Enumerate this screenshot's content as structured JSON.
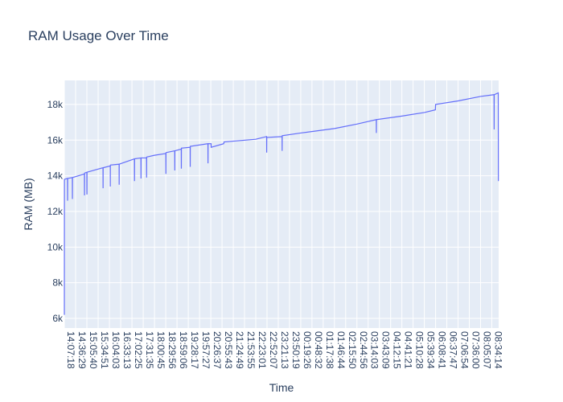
{
  "chart_data": {
    "type": "line",
    "title": "RAM Usage Over Time",
    "x_label": "Time",
    "y_label": "RAM (MB)",
    "color": "#636efa",
    "grid": true,
    "x": [
      "14:07:18",
      "14:07:30",
      "14:15:30",
      "14:15:42",
      "14:15:54",
      "14:28:00",
      "14:28:12",
      "14:28:24",
      "14:59:18",
      "14:59:30",
      "14:59:42",
      "15:05:36",
      "15:05:48",
      "15:06:00",
      "15:47:24",
      "15:47:36",
      "15:47:48",
      "16:06:06",
      "16:06:18",
      "16:06:30",
      "16:29:06",
      "16:29:18",
      "16:29:30",
      "17:08:48",
      "17:09:00",
      "17:09:12",
      "17:25:36",
      "17:25:48",
      "17:26:00",
      "17:40:06",
      "17:40:18",
      "17:40:30",
      "18:00:45",
      "18:30:06",
      "18:30:18",
      "18:30:30",
      "18:53:06",
      "18:53:18",
      "18:53:30",
      "19:10:06",
      "19:10:18",
      "19:10:30",
      "19:33:06",
      "19:33:18",
      "19:33:30",
      "20:19:06",
      "20:19:18",
      "20:19:30",
      "20:27:18",
      "20:27:30",
      "21:00:00",
      "21:01:00",
      "22:23:01",
      "22:51:06",
      "22:51:18",
      "22:51:30",
      "23:31:06",
      "23:31:18",
      "23:31:30",
      "00:19:26",
      "01:46:44",
      "02:44:56",
      "03:35:06",
      "03:35:18",
      "03:35:30",
      "04:41:21",
      "05:39:34",
      "06:08:06",
      "06:08:41",
      "07:06:54",
      "08:05:07",
      "08:40:06",
      "08:40:18",
      "08:40:30",
      "08:51:00",
      "08:51:18"
    ],
    "values": [
      6200,
      13800,
      13850,
      12600,
      13850,
      13900,
      12700,
      13900,
      14100,
      12900,
      14150,
      14200,
      12950,
      14200,
      14450,
      13300,
      14450,
      14550,
      13400,
      14600,
      14650,
      13500,
      14650,
      14950,
      13700,
      14950,
      15000,
      13850,
      15000,
      15000,
      13900,
      15050,
      15150,
      15250,
      14100,
      15300,
      15400,
      14300,
      15400,
      15500,
      14400,
      15550,
      15600,
      14500,
      15650,
      15800,
      14700,
      15800,
      15800,
      15600,
      15800,
      15900,
      16050,
      16200,
      15300,
      16150,
      16200,
      15400,
      16250,
      16400,
      16650,
      16900,
      17150,
      16400,
      17150,
      17350,
      17550,
      17700,
      18000,
      18200,
      18450,
      18550,
      16600,
      18550,
      18650,
      13700
    ],
    "xlim": [
      "14:07:18",
      "08:52:00"
    ],
    "xticks": [
      "14:07:18",
      "14:36:29",
      "15:05:40",
      "15:34:51",
      "16:04:03",
      "16:33:13",
      "17:02:25",
      "17:31:35",
      "18:00:45",
      "18:29:56",
      "18:59:06",
      "19:28:17",
      "19:57:27",
      "20:26:37",
      "20:55:43",
      "21:24:49",
      "21:53:55",
      "22:23:01",
      "22:52:07",
      "23:21:13",
      "23:50:19",
      "00:19:26",
      "00:48:32",
      "01:17:38",
      "01:46:44",
      "02:15:50",
      "02:44:56",
      "03:14:03",
      "03:43:09",
      "04:12:15",
      "04:41:21",
      "05:10:28",
      "05:39:34",
      "06:08:41",
      "06:37:47",
      "07:06:54",
      "07:36:00",
      "08:05:07",
      "08:34:14"
    ],
    "ylim": [
      5460,
      19350
    ],
    "yticks": [
      {
        "value": 6000,
        "label": "6k"
      },
      {
        "value": 8000,
        "label": "8k"
      },
      {
        "value": 10000,
        "label": "10k"
      },
      {
        "value": 12000,
        "label": "12k"
      },
      {
        "value": 14000,
        "label": "14k"
      },
      {
        "value": 16000,
        "label": "16k"
      },
      {
        "value": 18000,
        "label": "18k"
      }
    ]
  }
}
